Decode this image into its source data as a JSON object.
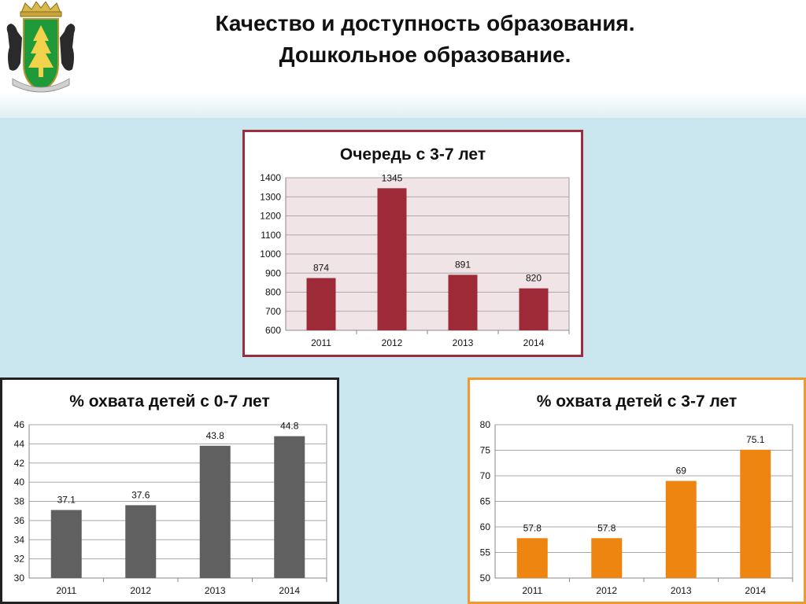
{
  "page": {
    "title_line1": "Качество и доступность образования.",
    "title_line2": "Дошкольное образование."
  },
  "colors": {
    "background": "#c9e6ee"
  },
  "logo": {
    "icon": "coat-of-arms-icon"
  },
  "charts": [
    {
      "id": "queue",
      "chart_data": {
        "type": "bar",
        "title": "Очередь с 3-7 лет",
        "categories": [
          "2011",
          "2012",
          "2013",
          "2014"
        ],
        "values": [
          874,
          1345,
          891,
          820
        ],
        "ylim": [
          600,
          1400
        ],
        "ystep": 100,
        "yticks": [
          "600",
          "700",
          "800",
          "900",
          "1000",
          "1100",
          "1200",
          "1300",
          "1400"
        ],
        "data_labels": [
          "874",
          "1345",
          "891",
          "820"
        ],
        "grid": true,
        "bar_color": "#9e2a38",
        "plot_bg": "#f0e4e6"
      }
    },
    {
      "id": "coverage-0-7",
      "chart_data": {
        "type": "bar",
        "title": "% охвата детей с 0-7 лет",
        "categories": [
          "2011",
          "2012",
          "2013",
          "2014"
        ],
        "values": [
          37.1,
          37.6,
          43.8,
          44.8
        ],
        "ylim": [
          30,
          46
        ],
        "ystep": 2,
        "yticks": [
          "30",
          "32",
          "34",
          "36",
          "38",
          "40",
          "42",
          "44",
          "46"
        ],
        "data_labels": [
          "37.1",
          "37.6",
          "43.8",
          "44.8"
        ],
        "grid": true,
        "bar_color": "#606060",
        "plot_bg": "#ffffff"
      }
    },
    {
      "id": "coverage-3-7",
      "chart_data": {
        "type": "bar",
        "title": "% охвата детей с 3-7 лет",
        "categories": [
          "2011",
          "2012",
          "2013",
          "2014"
        ],
        "values": [
          57.8,
          57.8,
          69,
          75.1
        ],
        "ylim": [
          50,
          80
        ],
        "ystep": 5,
        "yticks": [
          "50",
          "55",
          "60",
          "65",
          "70",
          "75",
          "80"
        ],
        "data_labels": [
          "57.8",
          "57.8",
          "69",
          "75.1"
        ],
        "grid": true,
        "bar_color": "#ee8510",
        "plot_bg": "#ffffff"
      }
    }
  ]
}
